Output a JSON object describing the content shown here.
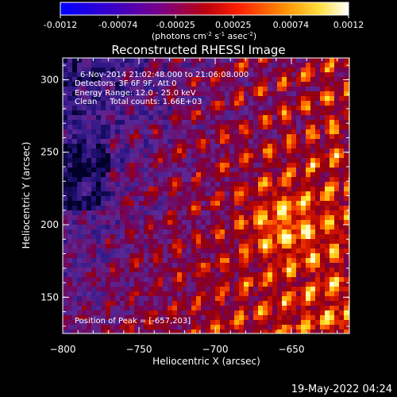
{
  "colorbar": {
    "ticks": [
      "-0.0012",
      "-0.00074",
      "-0.00025",
      "0.00025",
      "0.00074",
      "0.0012"
    ],
    "units_main": "(photons cm",
    "units_exp1": "-2",
    "units_mid": " s",
    "units_exp2": "-1",
    "units_tail": " asec",
    "units_exp3": "-2",
    "units_end": ")",
    "range": [
      -0.0012,
      0.0012
    ],
    "colors": [
      "#0000ff",
      "#4000c0",
      "#800080",
      "#c00000",
      "#ff4000",
      "#ffa000",
      "#ffff80",
      "#ffffff"
    ]
  },
  "chart_data": {
    "type": "heatmap",
    "title": "Reconstructed RHESSI Image",
    "xlabel": "Heliocentric X (arcsec)",
    "ylabel": "Heliocentric Y (arcsec)",
    "x_ticks": [
      -800,
      -750,
      -700,
      -650
    ],
    "y_ticks": [
      150,
      200,
      250,
      300
    ],
    "x_range": [
      -800,
      -612
    ],
    "y_range": [
      125,
      315
    ],
    "grid": false,
    "description_text": [
      "6-Nov-2014 21:02:48.000 to 21:06:08.000",
      "Detectors: 3F 6F 9F, Att 0",
      "Energy Range: 12.0 - 25.0 keV",
      "Clean     Total counts: 1.66E+03"
    ],
    "peak_label": "Position of Peak = [-657,203]",
    "peak": [
      -657,
      203
    ]
  },
  "footer": {
    "date": "19-May-2022 04:24"
  }
}
